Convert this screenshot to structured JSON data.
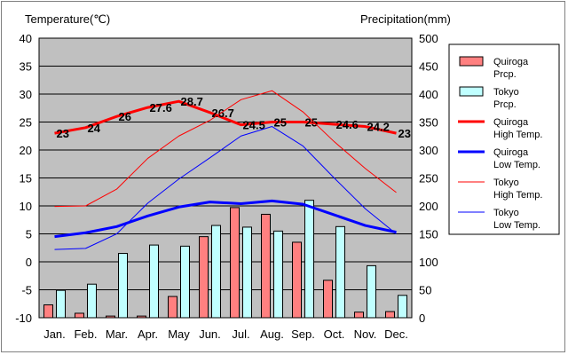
{
  "chart_data": {
    "type": "bar",
    "categories": [
      "Jan.",
      "Feb.",
      "Mar.",
      "Apr.",
      "May",
      "Jun.",
      "Jul.",
      "Aug.",
      "Sep.",
      "Oct.",
      "Nov.",
      "Dec."
    ],
    "y_left": {
      "label": "Temperature(℃)",
      "min": -10,
      "max": 40,
      "ticks": [
        -10,
        -5,
        0,
        5,
        10,
        15,
        20,
        25,
        30,
        35,
        40
      ]
    },
    "y_right": {
      "label": "Precipitation(mm)",
      "min": 0,
      "max": 500,
      "ticks": [
        0,
        50,
        100,
        150,
        200,
        250,
        300,
        350,
        400,
        450,
        500
      ]
    },
    "grid": true,
    "legend_position": "right",
    "series": [
      {
        "name": "Quiroga\nPrcp.",
        "kind": "bar",
        "axis": "right",
        "color": "#ff8080",
        "values": [
          23,
          8,
          3,
          3,
          38,
          145,
          197,
          185,
          135,
          67,
          10,
          11
        ]
      },
      {
        "name": "Tokyo\nPrcp.",
        "kind": "bar",
        "axis": "right",
        "color": "#c0ffff",
        "values": [
          49,
          60,
          115,
          130,
          128,
          165,
          162,
          155,
          210,
          163,
          93,
          40
        ]
      },
      {
        "name": "Quiroga\nHigh Temp.",
        "kind": "line",
        "axis": "left",
        "color": "#ff0000",
        "width": 3,
        "values": [
          23,
          24,
          26,
          27.6,
          28.7,
          26.7,
          24.5,
          25,
          25,
          24.6,
          24.2,
          23
        ],
        "labels": [
          "23",
          "24",
          "26",
          "27.6",
          "28.7",
          "26.7",
          "24.5",
          "25",
          "25",
          "24.6",
          "24.2",
          "23"
        ]
      },
      {
        "name": "Quiroga\nLow Temp.",
        "kind": "line",
        "axis": "left",
        "color": "#0000ff",
        "width": 3,
        "values": [
          4.5,
          5.2,
          6.3,
          8.2,
          9.8,
          10.7,
          10.4,
          10.9,
          10.3,
          8.4,
          6.5,
          5.3
        ]
      },
      {
        "name": "Tokyo\nHigh Temp.",
        "kind": "line",
        "axis": "left",
        "color": "#ff0000",
        "width": 1,
        "values": [
          9.9,
          10,
          13,
          18.5,
          22.5,
          25.3,
          29,
          30.6,
          26.8,
          21.5,
          16.7,
          12.4
        ]
      },
      {
        "name": "Tokyo\nLow Temp.",
        "kind": "line",
        "axis": "left",
        "color": "#0000ff",
        "width": 1,
        "values": [
          2.2,
          2.4,
          5,
          10.5,
          14.8,
          18.6,
          22.5,
          24.2,
          20.7,
          15,
          9.5,
          5
        ]
      }
    ]
  }
}
